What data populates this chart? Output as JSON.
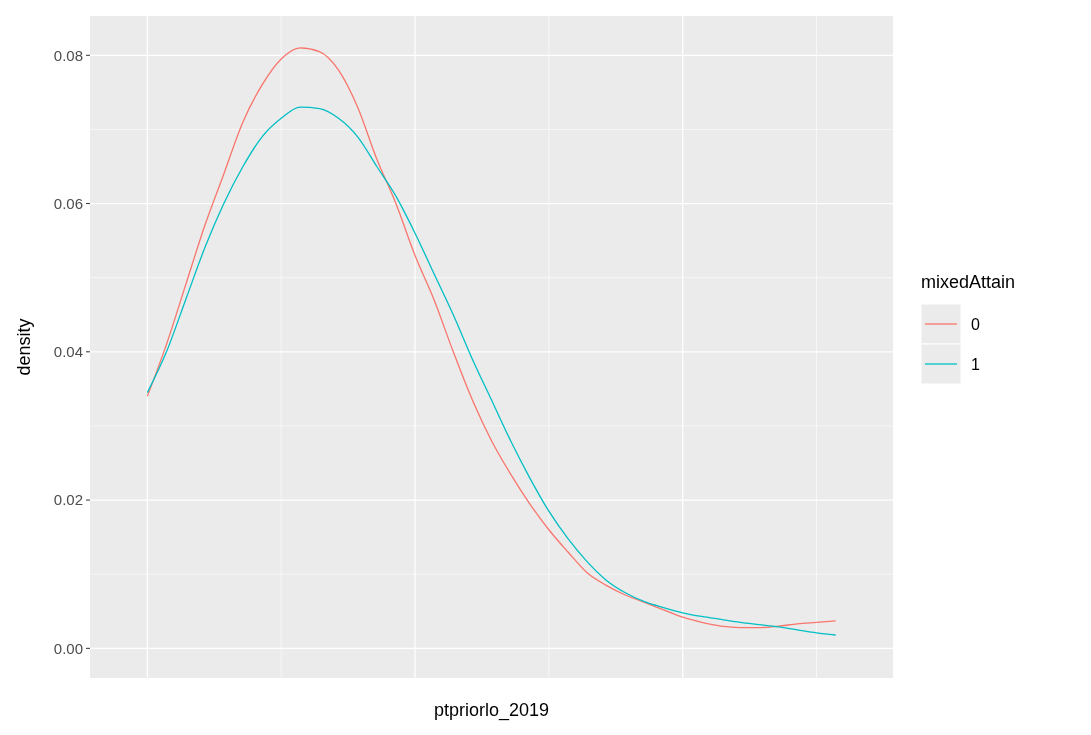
{
  "chart_data": {
    "type": "line",
    "xlabel": "ptpriorlo_2019",
    "ylabel": "density",
    "legend_title": "mixedAttain",
    "categories": [
      null,
      null,
      null,
      null,
      null,
      null,
      null,
      null,
      null,
      null,
      null,
      null,
      null,
      null,
      null,
      null,
      null,
      null,
      null,
      null,
      null,
      null,
      null,
      null,
      null,
      null,
      null,
      null,
      null,
      null,
      null,
      null,
      null,
      null,
      null,
      null,
      null
    ],
    "series": [
      {
        "name": "0",
        "color": "#f8766d",
        "values": [
          0.034,
          0.041,
          0.049,
          0.057,
          0.064,
          0.071,
          0.076,
          0.0795,
          0.081,
          0.0805,
          0.078,
          0.073,
          0.066,
          0.06,
          0.053,
          0.047,
          0.04,
          0.0335,
          0.028,
          0.0235,
          0.0195,
          0.016,
          0.013,
          0.0102,
          0.0085,
          0.0072,
          0.0062,
          0.0052,
          0.0042,
          0.0035,
          0.003,
          0.0028,
          0.0028,
          0.003,
          0.0033,
          0.0035,
          0.0037
        ]
      },
      {
        "name": "1",
        "color": "#00bfc4",
        "values": [
          0.0345,
          0.04,
          0.047,
          0.054,
          0.06,
          0.065,
          0.069,
          0.0715,
          0.073,
          0.0728,
          0.0715,
          0.069,
          0.065,
          0.061,
          0.056,
          0.0505,
          0.045,
          0.039,
          0.0335,
          0.028,
          0.023,
          0.0185,
          0.0148,
          0.0117,
          0.0092,
          0.0075,
          0.0063,
          0.0055,
          0.0048,
          0.0043,
          0.0039,
          0.0035,
          0.0032,
          0.0029,
          0.0025,
          0.0021,
          0.0018
        ]
      }
    ],
    "ylim": [
      -0.004,
      0.0853
    ],
    "yticks": [
      {
        "value": 0,
        "label": "0.00"
      },
      {
        "value": 0.02,
        "label": "0.02"
      },
      {
        "value": 0.04,
        "label": "0.04"
      },
      {
        "value": 0.06,
        "label": "0.06"
      },
      {
        "value": 0.08,
        "label": "0.08"
      }
    ],
    "grid": true,
    "legend": "right"
  }
}
